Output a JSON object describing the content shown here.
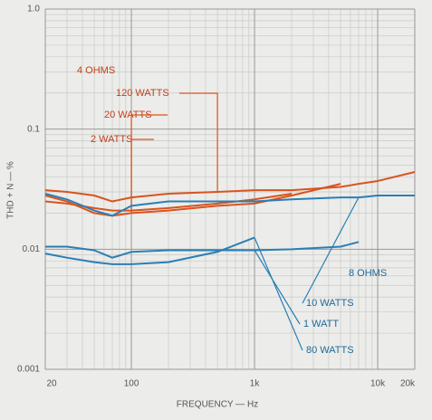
{
  "chart_data": {
    "type": "line",
    "x_label": "FREQUENCY — Hz",
    "y_label": "THD + N — %",
    "log_x": true,
    "log_y": true,
    "grid": true,
    "minor_grid": true,
    "xlim": [
      20,
      20000
    ],
    "ylim": [
      0.001,
      1
    ],
    "xticks": [
      20,
      100,
      {
        "value": 1000,
        "label": "1k"
      },
      {
        "value": 10000,
        "label": "10k"
      },
      {
        "value": 20000,
        "label": "20k"
      }
    ],
    "yticks": [
      0.001,
      0.01,
      0.1,
      {
        "value": 1,
        "label": "1.0"
      }
    ],
    "annotations": [
      "4 OHMS",
      "8 OHMS"
    ],
    "x": [
      20,
      30,
      50,
      70,
      100,
      200,
      500,
      1000,
      2000,
      5000,
      7000,
      10000,
      20000
    ],
    "series": [
      {
        "name": "120 WATTS",
        "color": "#d9541e",
        "values": [
          0.031,
          0.03,
          0.028,
          0.025,
          0.027,
          0.029,
          0.03,
          0.031,
          0.031,
          0.033,
          0.035,
          0.037,
          0.044
        ]
      },
      {
        "name": "20 WATTS",
        "color": "#d9541e",
        "values": [
          0.028,
          0.025,
          0.02,
          0.019,
          0.02,
          0.021,
          0.023,
          0.024,
          0.028,
          0.035,
          null,
          null,
          null
        ]
      },
      {
        "name": "2 WATTS",
        "color": "#d9541e",
        "values": [
          0.025,
          0.024,
          0.022,
          0.021,
          0.021,
          0.022,
          0.024,
          0.026,
          0.029,
          null,
          null,
          null,
          null
        ]
      },
      {
        "name": "10 WATTS",
        "color": "#2a7fb5",
        "values": [
          0.029,
          0.026,
          0.021,
          0.019,
          0.023,
          0.025,
          0.025,
          0.025,
          0.026,
          0.027,
          0.027,
          0.028,
          0.028
        ]
      },
      {
        "name": "1 WATT",
        "color": "#2a7fb5",
        "values": [
          0.0105,
          0.0105,
          0.0098,
          0.0085,
          0.0095,
          0.0098,
          0.0098,
          0.0098,
          0.01,
          0.0105,
          0.0115,
          null,
          null
        ]
      },
      {
        "name": "80 WATTS",
        "color": "#2a7fb5",
        "values": [
          0.0092,
          0.0085,
          0.0078,
          0.0075,
          0.0075,
          0.0078,
          0.0095,
          0.0125,
          null,
          null,
          null,
          null,
          null
        ]
      }
    ]
  }
}
